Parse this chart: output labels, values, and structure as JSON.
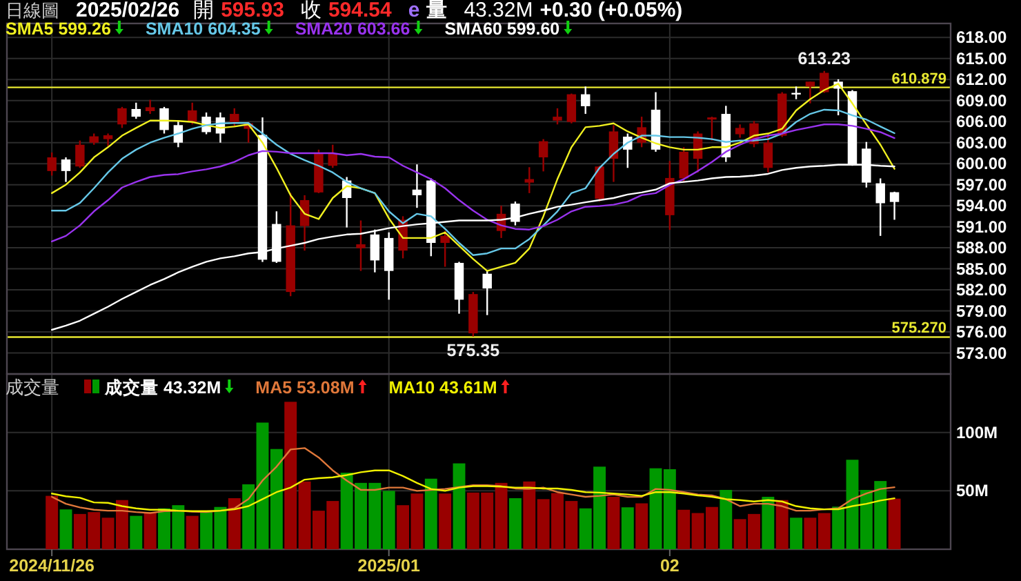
{
  "chart_data": [
    {
      "type": "candlestick",
      "title": "日線圖",
      "subtitle": "2025/02/26",
      "annotations": [
        "開",
        "595.93",
        "收",
        "594.54",
        "e",
        "量",
        "43.32M",
        "+0.30 (+0.05%)",
        {
          "text": "613.23",
          "y": 613.23
        },
        {
          "text": "575.35",
          "y": 575.35
        }
      ],
      "categories": [
        "2024/11/26",
        null,
        null,
        null,
        null,
        null,
        null,
        null,
        null,
        null,
        null,
        null,
        null,
        null,
        null,
        null,
        null,
        null,
        null,
        null,
        null,
        null,
        null,
        null,
        "2025/01",
        null,
        null,
        null,
        null,
        null,
        null,
        null,
        null,
        null,
        null,
        null,
        null,
        null,
        null,
        null,
        null,
        null,
        null,
        null,
        "02",
        null,
        null,
        null,
        null,
        null,
        null,
        null,
        null,
        null,
        null,
        null,
        null,
        null,
        null,
        null,
        null
      ],
      "ohlc": [
        [
          598.95,
          601.6,
          598.3,
          600.9
        ],
        [
          600.6,
          600.9,
          597.4,
          598.95
        ],
        [
          599.6,
          603.3,
          599.4,
          602.7
        ],
        [
          603.0,
          604.3,
          602.7,
          603.9
        ],
        [
          603.5,
          604.3,
          602.5,
          604.05
        ],
        [
          605.6,
          608.1,
          605.1,
          607.9
        ],
        [
          607.8,
          608.7,
          606.4,
          606.7
        ],
        [
          607.5,
          609.1,
          607.1,
          608.05
        ],
        [
          607.9,
          608.1,
          604.3,
          604.8
        ],
        [
          605.5,
          606.1,
          602.35,
          603.0
        ],
        [
          605.95,
          608.7,
          605.6,
          607.6
        ],
        [
          606.7,
          607.3,
          604.2,
          604.5
        ],
        [
          606.6,
          607.3,
          603.0,
          604.3
        ],
        [
          605.95,
          607.9,
          605.3,
          607.1
        ],
        [
          604.97,
          605.95,
          603.0,
          605.75
        ],
        [
          604.1,
          606.6,
          585.98,
          586.3
        ],
        [
          591.4,
          593.2,
          585.85,
          586.0
        ],
        [
          581.7,
          595.8,
          581.1,
          591.2
        ],
        [
          591.1,
          595.5,
          587.6,
          594.8
        ],
        [
          595.9,
          602.0,
          595.8,
          601.4
        ],
        [
          599.7,
          602.7,
          599.4,
          601.4
        ],
        [
          597.6,
          598.1,
          590.9,
          595.1
        ],
        [
          587.95,
          591.9,
          584.7,
          588.5
        ],
        [
          589.9,
          590.6,
          584.5,
          586.2
        ],
        [
          589.4,
          590.2,
          580.6,
          584.7
        ],
        [
          587.6,
          592.5,
          586.5,
          592.0
        ],
        [
          596.3,
          599.9,
          593.7,
          595.5
        ],
        [
          597.6,
          597.9,
          586.8,
          588.7
        ],
        [
          588.7,
          590.4,
          585.3,
          589.7
        ],
        [
          585.85,
          586.0,
          578.6,
          580.6
        ],
        [
          575.8,
          581.7,
          575.35,
          581.4
        ],
        [
          584.3,
          584.7,
          578.4,
          582.2
        ],
        [
          590.4,
          594.0,
          589.4,
          592.85
        ],
        [
          594.3,
          594.6,
          591.2,
          591.7
        ],
        [
          597.3,
          599.5,
          595.8,
          597.8
        ],
        [
          600.9,
          603.5,
          598.9,
          603.2
        ],
        [
          606.15,
          607.9,
          605.6,
          606.7
        ],
        [
          605.95,
          610.0,
          605.75,
          609.9
        ],
        [
          609.9,
          611.0,
          607.1,
          608.2
        ],
        [
          595.0,
          599.7,
          594.6,
          599.6
        ],
        [
          600.7,
          605.5,
          597.4,
          604.6
        ],
        [
          603.85,
          604.3,
          599.4,
          602.0
        ],
        [
          603.0,
          606.7,
          602.35,
          605.2
        ],
        [
          607.7,
          610.2,
          601.7,
          602.0
        ],
        [
          592.65,
          600.4,
          590.56,
          597.96
        ],
        [
          597.9,
          602.35,
          597.4,
          601.7
        ],
        [
          600.7,
          604.6,
          598.75,
          604.3
        ],
        [
          606.3,
          606.7,
          603.3,
          606.6
        ],
        [
          607.1,
          608.25,
          600.25,
          600.9
        ],
        [
          604.2,
          605.6,
          603.7,
          605.1
        ],
        [
          602.8,
          606.1,
          602.35,
          605.75
        ],
        [
          599.4,
          604.3,
          598.75,
          603.0
        ],
        [
          603.99,
          610.2,
          603.8,
          610.0
        ],
        [
          610.1,
          611.0,
          609.2,
          610.0
        ],
        [
          611.0,
          611.7,
          608.6,
          611.7
        ],
        [
          610.2,
          613.23,
          610.1,
          612.96
        ],
        [
          611.7,
          612.04,
          606.9,
          610.7
        ],
        [
          610.34,
          610.5,
          599.7,
          599.9
        ],
        [
          602.15,
          603.1,
          596.6,
          597.3
        ],
        [
          597.2,
          597.9,
          589.7,
          594.36
        ],
        [
          595.93,
          596.0,
          592.0,
          594.54
        ]
      ],
      "series": [
        {
          "type": "line",
          "name": "SMA5 599.26",
          "color": "#f0f020",
          "values": [
            595.8,
            597.0,
            598.75,
            600.9,
            602.35,
            604.0,
            605.1,
            606.15,
            606.15,
            606.1,
            605.95,
            605.5,
            605.1,
            605.3,
            605.6,
            603.0,
            599.4,
            595.5,
            592.85,
            592.1,
            595.1,
            596.8,
            596.5,
            595.8,
            592.2,
            589.4,
            589.4,
            589.4,
            590.2,
            588.3,
            586.4,
            584.7,
            585.3,
            585.85,
            587.9,
            592.5,
            597.8,
            602.35,
            605.2,
            605.4,
            605.75,
            604.6,
            603.7,
            602.9,
            602.35,
            602.0,
            602.0,
            602.35,
            602.35,
            603.0,
            604.0,
            604.3,
            604.97,
            607.6,
            609.2,
            610.5,
            611.4,
            608.6,
            605.6,
            602.7,
            599.26
          ]
        },
        {
          "type": "line",
          "name": "SMA10 604.35",
          "color": "#66c8e8",
          "values": [
            593.3,
            593.3,
            594.4,
            596.5,
            598.75,
            600.7,
            602.0,
            603.0,
            603.7,
            604.3,
            604.97,
            605.5,
            605.75,
            605.8,
            605.8,
            604.3,
            602.7,
            601.4,
            600.5,
            599.7,
            598.75,
            597.4,
            596.5,
            595.8,
            593.2,
            591.5,
            592.85,
            592.5,
            590.7,
            588.7,
            586.95,
            587.2,
            587.9,
            587.9,
            589.25,
            591.2,
            593.2,
            595.8,
            596.5,
            599.4,
            601.4,
            603.0,
            604.0,
            604.0,
            603.8,
            603.8,
            603.7,
            603.5,
            603.1,
            603.3,
            603.3,
            603.5,
            604.3,
            605.95,
            607.1,
            607.7,
            607.6,
            606.9,
            606.3,
            605.3,
            604.35
          ]
        },
        {
          "type": "line",
          "name": "SMA20 603.66",
          "color": "#9933ee",
          "values": [
            588.9,
            589.7,
            591.2,
            593.2,
            594.8,
            596.6,
            597.4,
            598.1,
            598.4,
            598.5,
            598.9,
            599.2,
            599.6,
            600.25,
            601.2,
            601.8,
            601.7,
            601.5,
            601.5,
            601.5,
            601.5,
            601.2,
            601.4,
            601.0,
            600.9,
            599.7,
            598.75,
            597.8,
            596.5,
            594.8,
            593.3,
            592.0,
            591.2,
            590.7,
            590.6,
            591.1,
            592.0,
            593.2,
            593.85,
            593.95,
            594.15,
            594.6,
            595.5,
            595.8,
            596.98,
            597.8,
            598.95,
            600.25,
            601.7,
            602.7,
            603.5,
            604.0,
            604.3,
            604.8,
            605.2,
            605.6,
            605.6,
            605.4,
            604.97,
            604.5,
            603.66
          ]
        },
        {
          "type": "line",
          "name": "SMA60 599.60",
          "color": "#ffffff",
          "values": [
            576.3,
            576.9,
            577.6,
            578.6,
            579.6,
            580.7,
            581.7,
            582.7,
            583.55,
            584.5,
            585.3,
            586.0,
            586.5,
            586.8,
            587.2,
            587.4,
            587.9,
            588.3,
            588.7,
            589.25,
            589.6,
            589.9,
            590.0,
            590.4,
            590.8,
            591.1,
            591.35,
            591.5,
            591.7,
            591.9,
            591.9,
            591.9,
            592.0,
            592.3,
            592.85,
            593.3,
            593.85,
            594.15,
            594.5,
            594.8,
            595.1,
            595.6,
            595.9,
            596.3,
            597.2,
            597.4,
            597.6,
            597.9,
            598.1,
            598.15,
            598.3,
            598.55,
            599.1,
            599.4,
            599.6,
            599.7,
            599.85,
            599.85,
            599.85,
            599.7,
            599.6
          ]
        }
      ],
      "ylim": [
        570,
        620
      ],
      "yticks": [
        {
          "value": 573,
          "label": "573.00"
        },
        {
          "value": 576,
          "label": "576.00"
        },
        {
          "value": 579,
          "label": "579.00"
        },
        {
          "value": 582,
          "label": "582.00"
        },
        {
          "value": 585,
          "label": "585.00"
        },
        {
          "value": 588,
          "label": "588.00"
        },
        {
          "value": 591,
          "label": "591.00"
        },
        {
          "value": 594,
          "label": "594.00"
        },
        {
          "value": 597,
          "label": "597.00"
        },
        {
          "value": 600,
          "label": "600.00"
        },
        {
          "value": 603,
          "label": "603.00"
        },
        {
          "value": 606,
          "label": "606.00"
        },
        {
          "value": 609,
          "label": "609.00"
        },
        {
          "value": 612,
          "label": "612.00"
        },
        {
          "value": 615,
          "label": "615.00"
        },
        {
          "value": 618,
          "label": "618.00"
        }
      ],
      "ref_lines": [
        {
          "axis": "y",
          "value": 610.879,
          "label": "610.879",
          "color": "#e8e830"
        },
        {
          "axis": "y",
          "value": 575.27,
          "label": "575.270",
          "color": "#e8e830"
        }
      ],
      "grid": true,
      "legend": "top left",
      "tick_labels": "y"
    },
    {
      "type": "bar",
      "title": "成交量",
      "categories": [
        "2024/11/26",
        null,
        null,
        null,
        null,
        null,
        null,
        null,
        null,
        null,
        null,
        null,
        null,
        null,
        null,
        null,
        null,
        null,
        null,
        null,
        null,
        null,
        null,
        null,
        "2025/01",
        null,
        null,
        null,
        null,
        null,
        null,
        null,
        null,
        null,
        null,
        null,
        null,
        null,
        null,
        null,
        null,
        null,
        null,
        null,
        "02",
        null,
        null,
        null,
        null,
        null,
        null,
        null,
        null,
        null,
        null,
        null,
        null,
        null,
        null,
        null,
        null
      ],
      "series": [
        {
          "name": "成交量 43.32M",
          "colors": [
            "#990000",
            "#009900",
            "#990000",
            "#990000",
            "#990000",
            "#990000",
            "#009900",
            "#990000",
            "#009900",
            "#009900",
            "#990000",
            "#009900",
            "#009900",
            "#990000",
            "#009900",
            "#009900",
            "#009900",
            "#990000",
            "#990000",
            "#990000",
            "#990000",
            "#009900",
            "#009900",
            "#009900",
            "#009900",
            "#990000",
            "#990000",
            "#009900",
            "#990000",
            "#009900",
            "#990000",
            "#990000",
            "#990000",
            "#009900",
            "#990000",
            "#990000",
            "#990000",
            "#990000",
            "#009900",
            "#009900",
            "#990000",
            "#009900",
            "#990000",
            "#009900",
            "#009900",
            "#990000",
            "#990000",
            "#990000",
            "#009900",
            "#990000",
            "#990000",
            "#009900",
            "#990000",
            "#009900",
            "#990000",
            "#990000",
            "#009900",
            "#009900",
            "#009900",
            "#009900",
            "#990000"
          ],
          "values": [
            45.7,
            34.1,
            30.2,
            31.8,
            27.0,
            42.1,
            28.6,
            31.8,
            35.0,
            37.7,
            28.6,
            32.6,
            36.2,
            43.7,
            55.6,
            108.4,
            85.8,
            126.2,
            58.0,
            33.0,
            41.3,
            65.5,
            56.8,
            56.8,
            50.0,
            37.7,
            47.7,
            60.4,
            47.7,
            73.5,
            48.5,
            48.5,
            56.8,
            43.7,
            58.0,
            42.9,
            48.1,
            41.3,
            35.0,
            70.7,
            44.9,
            35.9,
            39.3,
            69.3,
            68.5,
            33.8,
            31.0,
            36.2,
            50.8,
            25.8,
            30.2,
            44.9,
            42.1,
            27.0,
            27.0,
            31.0,
            36.5,
            76.6,
            50.8,
            58.4,
            43.32
          ]
        },
        {
          "type": "line",
          "name": "MA5 53.08M",
          "color": "#e0783a",
          "values": [
            44.9,
            38.9,
            35.8,
            33.8,
            33.0,
            33.0,
            31.8,
            31.0,
            32.6,
            33.0,
            32.2,
            31.8,
            33.0,
            35.0,
            42.9,
            58.8,
            70.7,
            85.4,
            86.6,
            78.6,
            67.5,
            58.8,
            50.8,
            50.8,
            52.8,
            52.8,
            50.0,
            50.8,
            51.6,
            53.2,
            54.8,
            54.8,
            54.0,
            52.0,
            51.6,
            52.8,
            48.9,
            46.9,
            44.9,
            45.7,
            46.9,
            44.9,
            44.9,
            51.6,
            50.8,
            48.9,
            46.9,
            46.1,
            42.9,
            36.9,
            38.9,
            38.9,
            36.9,
            33.0,
            33.0,
            34.2,
            35.0,
            42.9,
            47.7,
            51.6,
            53.08
          ]
        },
        {
          "type": "line",
          "name": "MA10 43.61M",
          "color": "#f0f000",
          "values": [
            47.7,
            45.3,
            44.1,
            40.1,
            39.7,
            36.9,
            35.0,
            33.8,
            33.8,
            33.0,
            32.6,
            32.6,
            33.0,
            34.2,
            36.9,
            42.9,
            48.9,
            52.8,
            59.6,
            60.8,
            61.6,
            63.5,
            65.9,
            67.5,
            67.5,
            62.7,
            56.8,
            51.6,
            50.0,
            52.8,
            54.0,
            54.0,
            53.6,
            52.8,
            52.8,
            52.0,
            52.0,
            50.8,
            48.9,
            48.5,
            47.7,
            46.9,
            45.7,
            48.9,
            48.9,
            47.7,
            46.1,
            44.9,
            42.9,
            42.1,
            40.9,
            42.1,
            40.9,
            36.9,
            35.0,
            34.2,
            34.2,
            36.9,
            38.9,
            41.7,
            43.61
          ]
        }
      ],
      "ylim": [
        0,
        150
      ],
      "yticks": [
        {
          "value": 50,
          "label": "50M"
        },
        {
          "value": 100,
          "label": "100M"
        }
      ],
      "grid": true,
      "legend": "top left"
    }
  ]
}
